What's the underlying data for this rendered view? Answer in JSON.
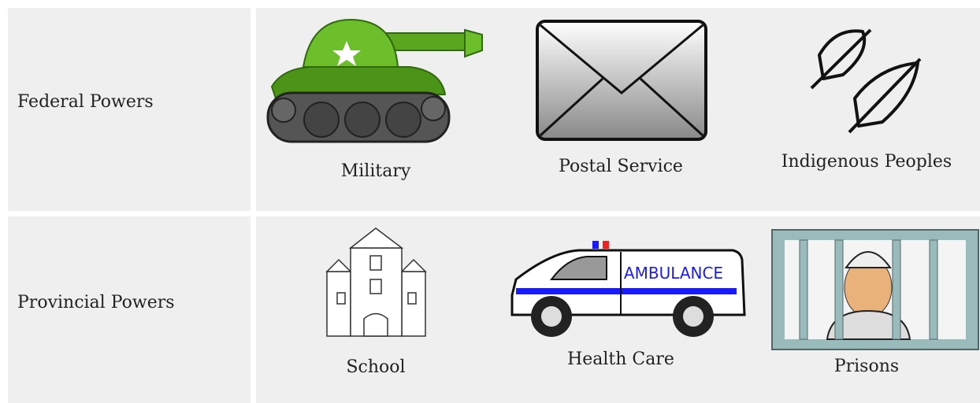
{
  "table": {
    "rows": [
      {
        "label": "Federal Powers",
        "items": [
          {
            "caption": "Military"
          },
          {
            "caption": "Postal Service"
          },
          {
            "caption": "Indigenous Peoples"
          }
        ]
      },
      {
        "label": "Provincial Powers",
        "items": [
          {
            "caption": "School"
          },
          {
            "caption": "Health Care",
            "badge": "AMBULANCE"
          },
          {
            "caption": "Prisons"
          }
        ]
      }
    ]
  }
}
